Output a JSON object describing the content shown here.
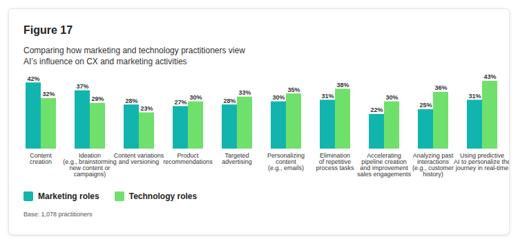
{
  "chart_data": {
    "type": "bar",
    "title": "Figure 17",
    "subtitle": "Comparing how marketing and technology practitioners view\nAI’s influence on CX and marketing activities",
    "caption": "Base: 1,078 practitioners",
    "categories": [
      "Content\ncreation",
      "Ideation\n(e.g., brainstorming\nnew content or\ncampaigns)",
      "Content variations\nand versioning",
      "Product\nrecommendations",
      "Targeted\nadvertising",
      "Personalizing\ncontent\n(e.g., emails)",
      "Elimination\nof repetitive\nprocess tasks",
      "Accelerating\npipeline creation\nand improvement\nsales engagements",
      "Analyzing past\ninteractions\n(e.g., customer\nhistory)",
      "Using predictive\nAI to personalize the\njourney in real-time"
    ],
    "series": [
      {
        "name": "Marketing roles",
        "color": "#12b5ad",
        "values": [
          42,
          37,
          28,
          27,
          28,
          30,
          31,
          22,
          25,
          31
        ],
        "value_labels": [
          "42%",
          "37%",
          "28%",
          "27%",
          "28%",
          "30%",
          "31%",
          "22%",
          "25%",
          "31%"
        ]
      },
      {
        "name": "Technology roles",
        "color": "#6fe06b",
        "values": [
          32,
          29,
          23,
          30,
          33,
          35,
          38,
          30,
          36,
          43
        ],
        "value_labels": [
          "32%",
          "29%",
          "23%",
          "30%",
          "33%",
          "35%",
          "38%",
          "30%",
          "36%",
          "43%"
        ]
      }
    ],
    "ylim": [
      0,
      43
    ],
    "grid": false,
    "legend": "bottom",
    "data_labels": true,
    "tick_labels": "x"
  }
}
